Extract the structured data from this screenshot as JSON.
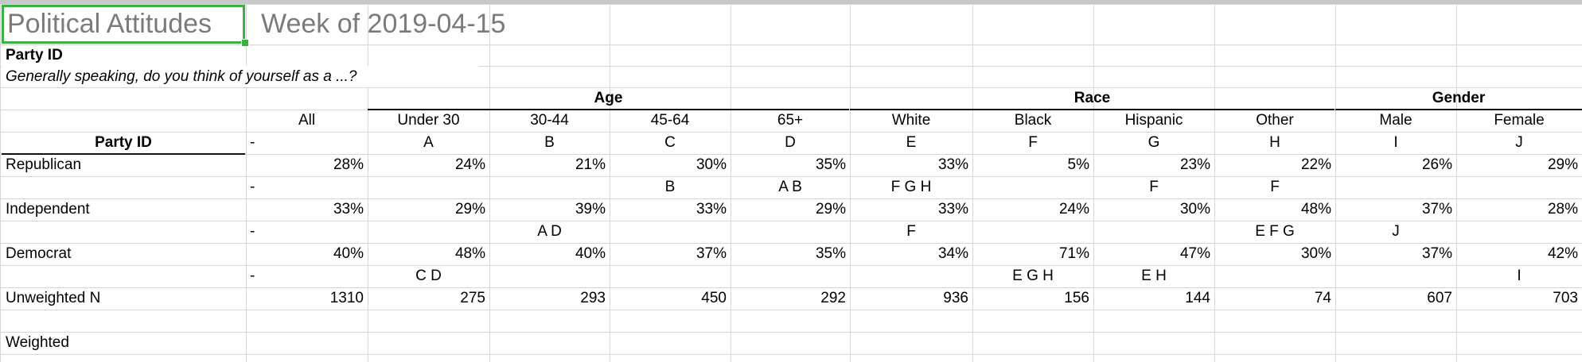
{
  "sheet": {
    "title": "Political Attitudes",
    "week": "Week of 2019-04-15",
    "section_label": "Party ID",
    "question": "Generally speaking, do you think of yourself as a ...?"
  },
  "groups": {
    "age": "Age",
    "race": "Race",
    "gender": "Gender"
  },
  "header": {
    "cols": [
      "All",
      "Under 30",
      "30-44",
      "45-64",
      "65+",
      "White",
      "Black",
      "Hispanic",
      "Other",
      "Male",
      "Female"
    ],
    "row_label": "Party ID",
    "letters": [
      "-",
      "A",
      "B",
      "C",
      "D",
      "E",
      "F",
      "G",
      "H",
      "I",
      "J"
    ]
  },
  "rows": [
    {
      "label": "Republican",
      "values": [
        "28%",
        "24%",
        "21%",
        "30%",
        "35%",
        "33%",
        "5%",
        "23%",
        "22%",
        "26%",
        "29%"
      ]
    },
    {
      "label": "",
      "values": [
        "-",
        "",
        "",
        "B",
        "A B",
        "F G H",
        "",
        "F",
        "F",
        "",
        ""
      ]
    },
    {
      "label": "Independent",
      "values": [
        "33%",
        "29%",
        "39%",
        "33%",
        "29%",
        "33%",
        "24%",
        "30%",
        "48%",
        "37%",
        "28%"
      ]
    },
    {
      "label": "",
      "values": [
        "-",
        "",
        "A D",
        "",
        "",
        "F",
        "",
        "",
        "E F G",
        "J",
        ""
      ]
    },
    {
      "label": "Democrat",
      "values": [
        "40%",
        "48%",
        "40%",
        "37%",
        "35%",
        "34%",
        "71%",
        "47%",
        "30%",
        "37%",
        "42%"
      ]
    },
    {
      "label": "",
      "values": [
        "-",
        "C D",
        "",
        "",
        "",
        "",
        "E G H",
        "E H",
        "",
        "",
        "I"
      ]
    },
    {
      "label": "Unweighted N",
      "values": [
        "1310",
        "275",
        "293",
        "450",
        "292",
        "936",
        "156",
        "144",
        "74",
        "607",
        "703"
      ]
    }
  ],
  "footer": {
    "weighted": "Weighted"
  },
  "colors": {
    "selection": "#3cb043",
    "grid": "#d6d6d6",
    "title_gray": "#7b7b7b"
  }
}
